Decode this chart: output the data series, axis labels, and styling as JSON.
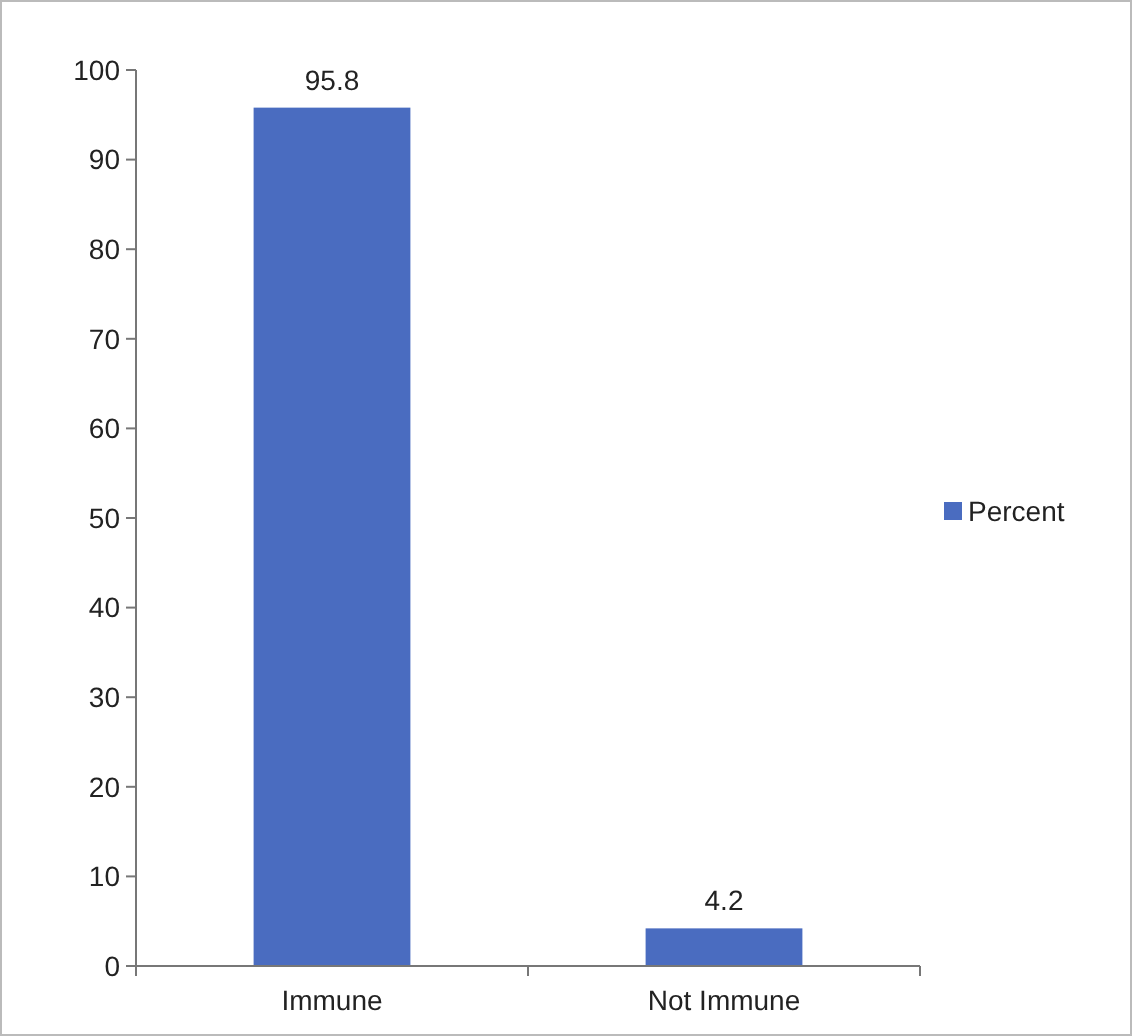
{
  "chart_data": {
    "type": "bar",
    "categories": [
      "Immune",
      "Not Immune"
    ],
    "series": [
      {
        "name": "Percent",
        "color": "#4a6cc0",
        "values": [
          95.8,
          4.2
        ]
      }
    ],
    "ylim": [
      0,
      100
    ],
    "yticks": [
      0,
      10,
      20,
      30,
      40,
      50,
      60,
      70,
      80,
      90,
      100
    ],
    "data_labels": true,
    "legend": "right",
    "grid": false
  }
}
